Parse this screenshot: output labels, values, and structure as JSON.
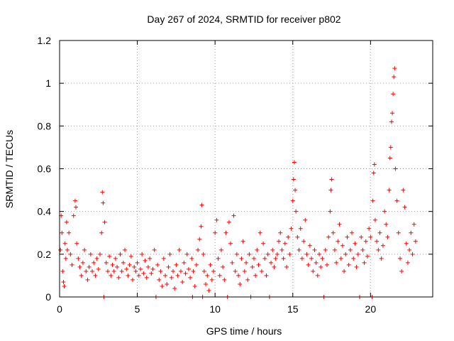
{
  "chart_data": {
    "type": "scatter",
    "title": "Day 267 of 2024, SRMTID for receiver p802",
    "xlabel": "GPS time / hours",
    "ylabel": "SRMTID / TECUs",
    "xlim": [
      0,
      24
    ],
    "ylim": [
      0,
      1.2
    ],
    "xticks": [
      0,
      5,
      10,
      15,
      20
    ],
    "xtick_labels": [
      "0",
      "5",
      "10",
      "15",
      "20"
    ],
    "yticks": [
      0,
      0.2,
      0.4,
      0.6,
      0.8,
      1.0,
      1.2
    ],
    "ytick_labels": [
      "0",
      "0.2",
      "0.4",
      "0.6",
      "0.8",
      "1",
      "1.2"
    ],
    "grid": true,
    "marker": "+",
    "color": "#ff0000",
    "series": [
      {
        "name": "SRMTID p802",
        "points": [
          [
            0.05,
            0.22
          ],
          [
            0.1,
            0.38
          ],
          [
            0.15,
            0.3
          ],
          [
            0.2,
            0.12
          ],
          [
            0.25,
            0.07
          ],
          [
            0.3,
            0.05
          ],
          [
            0.35,
            0.25
          ],
          [
            0.4,
            0.18
          ],
          [
            0.45,
            0.35
          ],
          [
            0.5,
            0.22
          ],
          [
            0.6,
            0.3
          ],
          [
            0.7,
            0.2
          ],
          [
            0.8,
            0.15
          ],
          [
            0.9,
            0.38
          ],
          [
            1.0,
            0.45
          ],
          [
            1.05,
            0.42
          ],
          [
            1.1,
            0.25
          ],
          [
            1.2,
            0.18
          ],
          [
            1.3,
            0.14
          ],
          [
            1.4,
            0.1
          ],
          [
            1.5,
            0.16
          ],
          [
            1.6,
            0.22
          ],
          [
            1.7,
            0.12
          ],
          [
            1.8,
            0.08
          ],
          [
            1.9,
            0.14
          ],
          [
            2.0,
            0.2
          ],
          [
            2.1,
            0.12
          ],
          [
            2.2,
            0.16
          ],
          [
            2.3,
            0.1
          ],
          [
            2.4,
            0.18
          ],
          [
            2.5,
            0.13
          ],
          [
            2.6,
            0.2
          ],
          [
            2.7,
            0.3
          ],
          [
            2.75,
            0.49
          ],
          [
            2.8,
            0.44
          ],
          [
            2.85,
            0.0
          ],
          [
            2.9,
            0.35
          ],
          [
            3.0,
            0.16
          ],
          [
            3.1,
            0.12
          ],
          [
            3.2,
            0.19
          ],
          [
            3.3,
            0.1
          ],
          [
            3.4,
            0.15
          ],
          [
            3.5,
            0.12
          ],
          [
            3.6,
            0.18
          ],
          [
            3.7,
            0.14
          ],
          [
            3.8,
            0.09
          ],
          [
            3.9,
            0.2
          ],
          [
            4.0,
            0.12
          ],
          [
            4.1,
            0.16
          ],
          [
            4.2,
            0.22
          ],
          [
            4.3,
            0.13
          ],
          [
            4.4,
            0.1
          ],
          [
            4.5,
            0.15
          ],
          [
            4.6,
            0.19
          ],
          [
            4.7,
            0.08
          ],
          [
            4.8,
            0.14
          ],
          [
            4.9,
            0.12
          ],
          [
            5.0,
            0.16
          ],
          [
            5.1,
            0.1
          ],
          [
            5.2,
            0.13
          ],
          [
            5.3,
            0.2
          ],
          [
            5.4,
            0.11
          ],
          [
            5.5,
            0.17
          ],
          [
            5.6,
            0.09
          ],
          [
            5.7,
            0.14
          ],
          [
            5.8,
            0.18
          ],
          [
            5.9,
            0.11
          ],
          [
            6.0,
            0.13
          ],
          [
            6.1,
            0.22
          ],
          [
            6.2,
            0.0
          ],
          [
            6.3,
            0.15
          ],
          [
            6.4,
            0.08
          ],
          [
            6.5,
            0.12
          ],
          [
            6.6,
            0.05
          ],
          [
            6.7,
            0.18
          ],
          [
            6.8,
            0.1
          ],
          [
            6.9,
            0.06
          ],
          [
            7.0,
            0.14
          ],
          [
            7.1,
            0.2
          ],
          [
            7.2,
            0.09
          ],
          [
            7.3,
            0.12
          ],
          [
            7.4,
            0.04
          ],
          [
            7.5,
            0.15
          ],
          [
            7.6,
            0.1
          ],
          [
            7.7,
            0.22
          ],
          [
            7.8,
            0.12
          ],
          [
            7.9,
            0.07
          ],
          [
            8.0,
            0.16
          ],
          [
            8.1,
            0.11
          ],
          [
            8.2,
            0.2
          ],
          [
            8.3,
            0.13
          ],
          [
            8.4,
            0.09
          ],
          [
            8.5,
            0.18
          ],
          [
            8.55,
            0.0
          ],
          [
            8.6,
            0.12
          ],
          [
            8.7,
            0.05
          ],
          [
            8.8,
            0.15
          ],
          [
            8.9,
            0.22
          ],
          [
            9.0,
            0.27
          ],
          [
            9.1,
            0.33
          ],
          [
            9.15,
            0.43
          ],
          [
            9.2,
            0.0
          ],
          [
            9.25,
            0.2
          ],
          [
            9.3,
            0.12
          ],
          [
            9.4,
            0.06
          ],
          [
            9.5,
            0.1
          ],
          [
            9.6,
            0.03
          ],
          [
            9.7,
            0.15
          ],
          [
            9.8,
            0.08
          ],
          [
            9.9,
            0.12
          ],
          [
            10.0,
            0.3
          ],
          [
            10.1,
            0.36
          ],
          [
            10.2,
            0.18
          ],
          [
            10.3,
            0.1
          ],
          [
            10.4,
            0.22
          ],
          [
            10.5,
            0.14
          ],
          [
            10.6,
            0.08
          ],
          [
            10.7,
            0.3
          ],
          [
            10.8,
            0.0
          ],
          [
            10.9,
            0.35
          ],
          [
            11.0,
            0.25
          ],
          [
            11.1,
            0.16
          ],
          [
            11.2,
            0.38
          ],
          [
            11.3,
            0.12
          ],
          [
            11.4,
            0.2
          ],
          [
            11.5,
            0.1
          ],
          [
            11.6,
            0.06
          ],
          [
            11.7,
            0.18
          ],
          [
            11.8,
            0.26
          ],
          [
            11.9,
            0.12
          ],
          [
            12.0,
            0.16
          ],
          [
            12.1,
            0.08
          ],
          [
            12.2,
            0.2
          ],
          [
            12.3,
            0.0
          ],
          [
            12.4,
            0.14
          ],
          [
            12.5,
            0.18
          ],
          [
            12.6,
            0.1
          ],
          [
            12.7,
            0.22
          ],
          [
            12.8,
            0.15
          ],
          [
            12.9,
            0.3
          ],
          [
            13.0,
            0.12
          ],
          [
            13.1,
            0.25
          ],
          [
            13.2,
            0.18
          ],
          [
            13.3,
            0.1
          ],
          [
            13.4,
            0.2
          ],
          [
            13.5,
            0.0
          ],
          [
            13.6,
            0.16
          ],
          [
            13.7,
            0.22
          ],
          [
            13.8,
            0.14
          ],
          [
            13.9,
            0.18
          ],
          [
            14.0,
            0.2
          ],
          [
            14.1,
            0.26
          ],
          [
            14.2,
            0.3
          ],
          [
            14.3,
            0.22
          ],
          [
            14.4,
            0.18
          ],
          [
            14.5,
            0.25
          ],
          [
            14.6,
            0.14
          ],
          [
            14.7,
            0.28
          ],
          [
            14.8,
            0.2
          ],
          [
            14.9,
            0.32
          ],
          [
            15.0,
            0.45
          ],
          [
            15.05,
            0.55
          ],
          [
            15.1,
            0.63
          ],
          [
            15.15,
            0.5
          ],
          [
            15.2,
            0.4
          ],
          [
            15.3,
            0.28
          ],
          [
            15.4,
            0.22
          ],
          [
            15.5,
            0.32
          ],
          [
            15.6,
            0.18
          ],
          [
            15.7,
            0.26
          ],
          [
            15.8,
            0.36
          ],
          [
            15.9,
            0.2
          ],
          [
            16.0,
            0.15
          ],
          [
            16.1,
            0.24
          ],
          [
            16.2,
            0.18
          ],
          [
            16.3,
            0.12
          ],
          [
            16.4,
            0.22
          ],
          [
            16.5,
            0.16
          ],
          [
            16.6,
            0.1
          ],
          [
            16.7,
            0.2
          ],
          [
            16.8,
            0.14
          ],
          [
            16.9,
            0.18
          ],
          [
            17.0,
            0.0
          ],
          [
            17.1,
            0.22
          ],
          [
            17.2,
            0.15
          ],
          [
            17.3,
            0.28
          ],
          [
            17.4,
            0.4
          ],
          [
            17.45,
            0.5
          ],
          [
            17.5,
            0.55
          ],
          [
            17.6,
            0.3
          ],
          [
            17.7,
            0.22
          ],
          [
            17.8,
            0.16
          ],
          [
            17.9,
            0.26
          ],
          [
            18.0,
            0.34
          ],
          [
            18.1,
            0.18
          ],
          [
            18.2,
            0.24
          ],
          [
            18.3,
            0.12
          ],
          [
            18.4,
            0.2
          ],
          [
            18.5,
            0.28
          ],
          [
            18.6,
            0.15
          ],
          [
            18.7,
            0.22
          ],
          [
            18.8,
            0.3
          ],
          [
            18.9,
            0.18
          ],
          [
            19.0,
            0.25
          ],
          [
            19.1,
            0.14
          ],
          [
            19.2,
            0.2
          ],
          [
            19.3,
            0.0
          ],
          [
            19.4,
            0.28
          ],
          [
            19.5,
            0.22
          ],
          [
            19.6,
            0.16
          ],
          [
            19.7,
            0.26
          ],
          [
            19.8,
            0.19
          ],
          [
            19.9,
            0.32
          ],
          [
            20.0,
            0.28
          ],
          [
            20.1,
            0.0
          ],
          [
            20.15,
            0.45
          ],
          [
            20.2,
            0.58
          ],
          [
            20.25,
            0.62
          ],
          [
            20.3,
            0.36
          ],
          [
            20.4,
            0.26
          ],
          [
            20.5,
            0.22
          ],
          [
            20.6,
            0.3
          ],
          [
            20.7,
            0.18
          ],
          [
            20.8,
            0.24
          ],
          [
            20.9,
            0.4
          ],
          [
            21.0,
            0.34
          ],
          [
            21.1,
            0.28
          ],
          [
            21.2,
            0.5
          ],
          [
            21.25,
            0.65
          ],
          [
            21.3,
            0.7
          ],
          [
            21.35,
            0.82
          ],
          [
            21.4,
            0.86
          ],
          [
            21.45,
            0.95
          ],
          [
            21.5,
            1.03
          ],
          [
            21.55,
            1.07
          ],
          [
            21.6,
            0.6
          ],
          [
            21.7,
            0.45
          ],
          [
            21.8,
            0.3
          ],
          [
            21.9,
            0.18
          ],
          [
            22.0,
            0.12
          ],
          [
            22.1,
            0.5
          ],
          [
            22.2,
            0.42
          ],
          [
            22.3,
            0.25
          ],
          [
            22.4,
            0.16
          ],
          [
            22.5,
            0.22
          ],
          [
            22.6,
            0.3
          ],
          [
            22.7,
            0.2
          ],
          [
            22.8,
            0.34
          ],
          [
            22.9,
            0.26
          ]
        ]
      }
    ]
  }
}
